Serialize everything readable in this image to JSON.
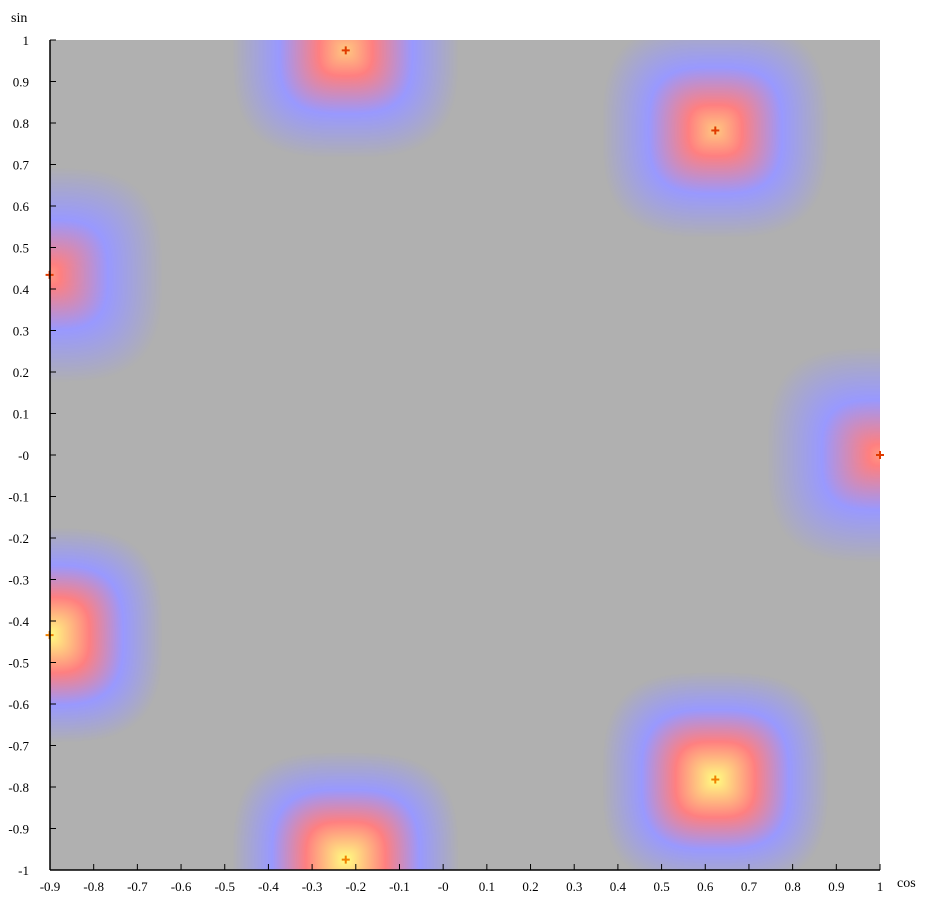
{
  "chart_data": {
    "type": "heatmap",
    "title": "",
    "xlabel": "cos",
    "ylabel": "sin",
    "xlim": [
      -0.9,
      1
    ],
    "ylim": [
      -1,
      1
    ],
    "x_ticks": [
      "-0.9",
      "-0.8",
      "-0.7",
      "-0.6",
      "-0.5",
      "-0.4",
      "-0.3",
      "-0.2",
      "-0.1",
      "-0",
      "0.1",
      "0.2",
      "0.3",
      "0.4",
      "0.5",
      "0.6",
      "0.7",
      "0.8",
      "0.9",
      "1"
    ],
    "y_ticks": [
      "1",
      "0.9",
      "0.8",
      "0.7",
      "0.6",
      "0.5",
      "0.4",
      "0.3",
      "0.2",
      "0.1",
      "-0",
      "-0.1",
      "-0.2",
      "-0.3",
      "-0.4",
      "-0.5",
      "-0.6",
      "-0.7",
      "-0.8",
      "-0.9",
      "-1"
    ],
    "background_color": "#b0b0b0",
    "colors": {
      "low": "#b0b0b0",
      "mid": "#9999ff",
      "warm": "#ff8080",
      "hot": "#ffff80",
      "marker_red": "#e03a00",
      "marker_orange": "#f08000"
    },
    "points": [
      {
        "x": 1.0,
        "y": 0.0,
        "intensity": 0.72
      },
      {
        "x": 0.623,
        "y": 0.782,
        "intensity": 0.85
      },
      {
        "x": -0.223,
        "y": 0.975,
        "intensity": 0.85
      },
      {
        "x": -0.901,
        "y": 0.434,
        "intensity": 0.72
      },
      {
        "x": -0.901,
        "y": -0.434,
        "intensity": 1.0
      },
      {
        "x": -0.223,
        "y": -0.975,
        "intensity": 1.0
      },
      {
        "x": 0.623,
        "y": -0.782,
        "intensity": 1.0
      }
    ]
  }
}
